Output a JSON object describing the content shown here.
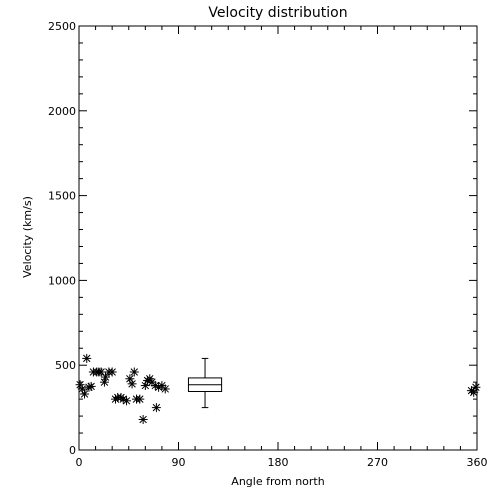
{
  "chart_data": {
    "type": "scatter",
    "title": "Velocity distribution",
    "xlabel": "Angle from north",
    "ylabel": "Velocity (km/s)",
    "xlim": [
      0,
      360
    ],
    "ylim": [
      0,
      2500
    ],
    "xticks": [
      0,
      90,
      180,
      270,
      360
    ],
    "yticks": [
      0,
      500,
      1000,
      1500,
      2000,
      2500
    ],
    "xtick_labels": [
      "0",
      "90",
      "180",
      "270",
      "360"
    ],
    "ytick_labels": [
      "0",
      "500",
      "1000",
      "1500",
      "2000",
      "2500"
    ],
    "grid": false,
    "marker": "asterisk",
    "points": [
      {
        "x": 1,
        "y": 385
      },
      {
        "x": 3,
        "y": 360
      },
      {
        "x": 5,
        "y": 330
      },
      {
        "x": 7,
        "y": 540
      },
      {
        "x": 9,
        "y": 370
      },
      {
        "x": 11,
        "y": 375
      },
      {
        "x": 13,
        "y": 460
      },
      {
        "x": 16,
        "y": 460
      },
      {
        "x": 18,
        "y": 460
      },
      {
        "x": 20,
        "y": 460
      },
      {
        "x": 23,
        "y": 400
      },
      {
        "x": 24,
        "y": 430
      },
      {
        "x": 27,
        "y": 460
      },
      {
        "x": 30,
        "y": 460
      },
      {
        "x": 33,
        "y": 300
      },
      {
        "x": 35,
        "y": 310
      },
      {
        "x": 38,
        "y": 310
      },
      {
        "x": 40,
        "y": 300
      },
      {
        "x": 43,
        "y": 290
      },
      {
        "x": 46,
        "y": 420
      },
      {
        "x": 48,
        "y": 390
      },
      {
        "x": 50,
        "y": 460
      },
      {
        "x": 52,
        "y": 300
      },
      {
        "x": 55,
        "y": 300
      },
      {
        "x": 58,
        "y": 180
      },
      {
        "x": 60,
        "y": 380
      },
      {
        "x": 62,
        "y": 410
      },
      {
        "x": 64,
        "y": 420
      },
      {
        "x": 66,
        "y": 400
      },
      {
        "x": 69,
        "y": 380
      },
      {
        "x": 70,
        "y": 250
      },
      {
        "x": 72,
        "y": 370
      },
      {
        "x": 75,
        "y": 380
      },
      {
        "x": 78,
        "y": 360
      },
      {
        "x": 355,
        "y": 350
      },
      {
        "x": 357,
        "y": 340
      },
      {
        "x": 359,
        "y": 370
      }
    ],
    "boxplot": {
      "x_center": 114,
      "x_width": 30,
      "whisker_low": 250,
      "q1": 345,
      "median": 385,
      "q3": 425,
      "whisker_high": 540
    }
  }
}
